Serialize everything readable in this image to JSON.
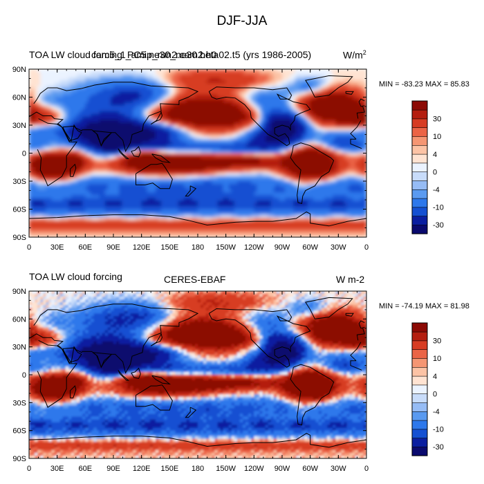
{
  "title": "DJF-JJA",
  "colors": {
    "levels": [
      "#0a0a6e",
      "#0a1ea0",
      "#1450d2",
      "#2d78eb",
      "#5a9af0",
      "#96bcf5",
      "#c8dcfa",
      "#ebf3ff",
      "#ffe3d2",
      "#fcc3a5",
      "#f59673",
      "#eb6446",
      "#d73c23",
      "#b41e10",
      "#8c0a05"
    ],
    "land_outline": "#000000"
  },
  "colorbar": {
    "labels": [
      "30",
      "10",
      "4",
      "0",
      "-4",
      "-10",
      "-30"
    ]
  },
  "chart_data": [
    {
      "type": "heatmap",
      "left_title": "TOA LW cloud forcing",
      "center_title": "cam5_1_amip_run2.cam2.h0",
      "center_title_overlay": "PC5.ne30_ne30.beta02.t5 (yrs 1986-2005)",
      "units": "W/m",
      "units_sup": "2",
      "min_max": "MIN = -83.23  MAX =  85.83",
      "x_ticks": [
        "0",
        "30E",
        "60E",
        "90E",
        "120E",
        "150E",
        "180",
        "150W",
        "120W",
        "90W",
        "60W",
        "30W",
        "0"
      ],
      "y_ticks": [
        "90N",
        "60N",
        "30N",
        "0",
        "30S",
        "60S",
        "90S"
      ],
      "xlim": [
        0,
        360
      ],
      "ylim": [
        -90,
        90
      ]
    },
    {
      "type": "heatmap",
      "left_title": "TOA LW cloud forcing",
      "center_title": "CERES-EBAF",
      "units": "W m-2",
      "min_max": "MIN = -74.19  MAX =  81.98",
      "x_ticks": [
        "0",
        "30E",
        "60E",
        "90E",
        "120E",
        "150E",
        "180",
        "150W",
        "120W",
        "90W",
        "60W",
        "30W",
        "0"
      ],
      "y_ticks": [
        "90N",
        "60N",
        "30N",
        "0",
        "30S",
        "60S",
        "90S"
      ],
      "xlim": [
        0,
        360
      ],
      "ylim": [
        -90,
        90
      ]
    }
  ]
}
